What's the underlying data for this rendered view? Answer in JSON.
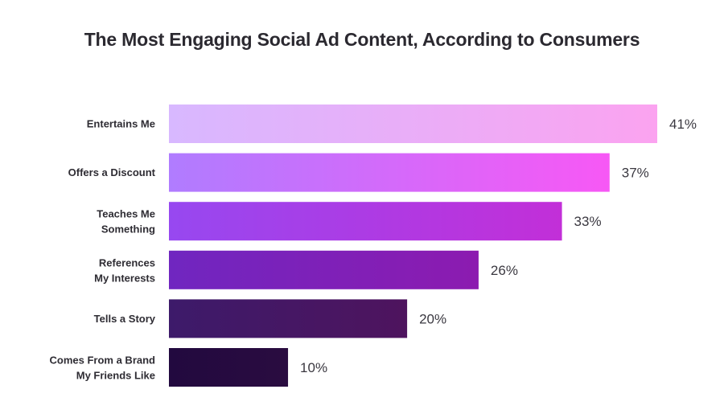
{
  "chart_data": {
    "type": "bar",
    "orientation": "horizontal",
    "title": "The Most Engaging Social Ad Content, According to Consumers",
    "categories": [
      [
        "Entertains Me"
      ],
      [
        "Offers a Discount"
      ],
      [
        "Teaches Me",
        "Something"
      ],
      [
        "References",
        "My Interests"
      ],
      [
        "Tells a Story"
      ],
      [
        "Comes From a Brand",
        "My Friends Like"
      ]
    ],
    "values": [
      41,
      37,
      33,
      26,
      20,
      10
    ],
    "value_labels": [
      "41%",
      "37%",
      "33%",
      "26%",
      "20%",
      "10%"
    ],
    "unit": "%",
    "xlim": [
      0,
      41
    ],
    "grid": false,
    "legend": "none",
    "colors": [
      [
        "#d8b8ff",
        "#fba3f0"
      ],
      [
        "#b07cff",
        "#f758f5"
      ],
      [
        "#9748f0",
        "#c22fd8"
      ],
      [
        "#7026c0",
        "#8c1bb0"
      ],
      [
        "#3d1a6a",
        "#4e145e"
      ],
      [
        "#22093f",
        "#2a0c40"
      ]
    ]
  }
}
